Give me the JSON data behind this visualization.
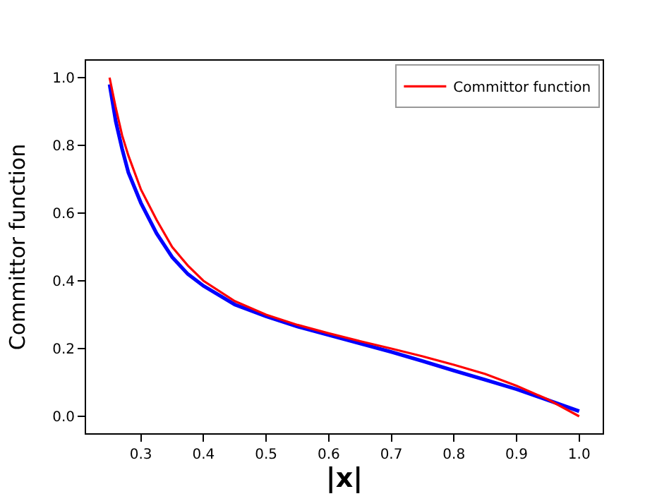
{
  "chart_data": {
    "type": "line",
    "xlabel": "|x|",
    "ylabel": "Committor function",
    "x": [
      0.25,
      0.26,
      0.27,
      0.28,
      0.3,
      0.325,
      0.35,
      0.375,
      0.4,
      0.45,
      0.5,
      0.55,
      0.6,
      0.65,
      0.7,
      0.75,
      0.8,
      0.85,
      0.9,
      0.95,
      1.0
    ],
    "series": [
      {
        "name": "Committor function",
        "color": "#ff0000",
        "values": [
          1.0,
          0.91,
          0.83,
          0.77,
          0.67,
          0.58,
          0.5,
          0.445,
          0.4,
          0.34,
          0.3,
          0.27,
          0.245,
          0.222,
          0.2,
          0.177,
          0.152,
          0.125,
          0.09,
          0.05,
          0.0
        ]
      },
      {
        "color": "#0000ff",
        "values": [
          0.98,
          0.87,
          0.79,
          0.72,
          0.63,
          0.54,
          0.47,
          0.42,
          0.385,
          0.33,
          0.295,
          0.265,
          0.24,
          0.215,
          0.19,
          0.163,
          0.135,
          0.108,
          0.08,
          0.048,
          0.015
        ]
      }
    ],
    "xlim": [
      0.2125,
      1.0375
    ],
    "ylim": [
      -0.05,
      1.05
    ],
    "xticks": [
      0.3,
      0.4,
      0.5,
      0.6,
      0.7,
      0.8,
      0.9,
      {
        "value": 1,
        "label": "1.0"
      }
    ],
    "yticks": [
      {
        "value": 0,
        "label": "0.0"
      },
      0.2,
      0.4,
      0.6,
      0.8,
      {
        "value": 1,
        "label": "1.0"
      }
    ],
    "legend": "top right",
    "marker": "none",
    "line_style": "solid"
  }
}
